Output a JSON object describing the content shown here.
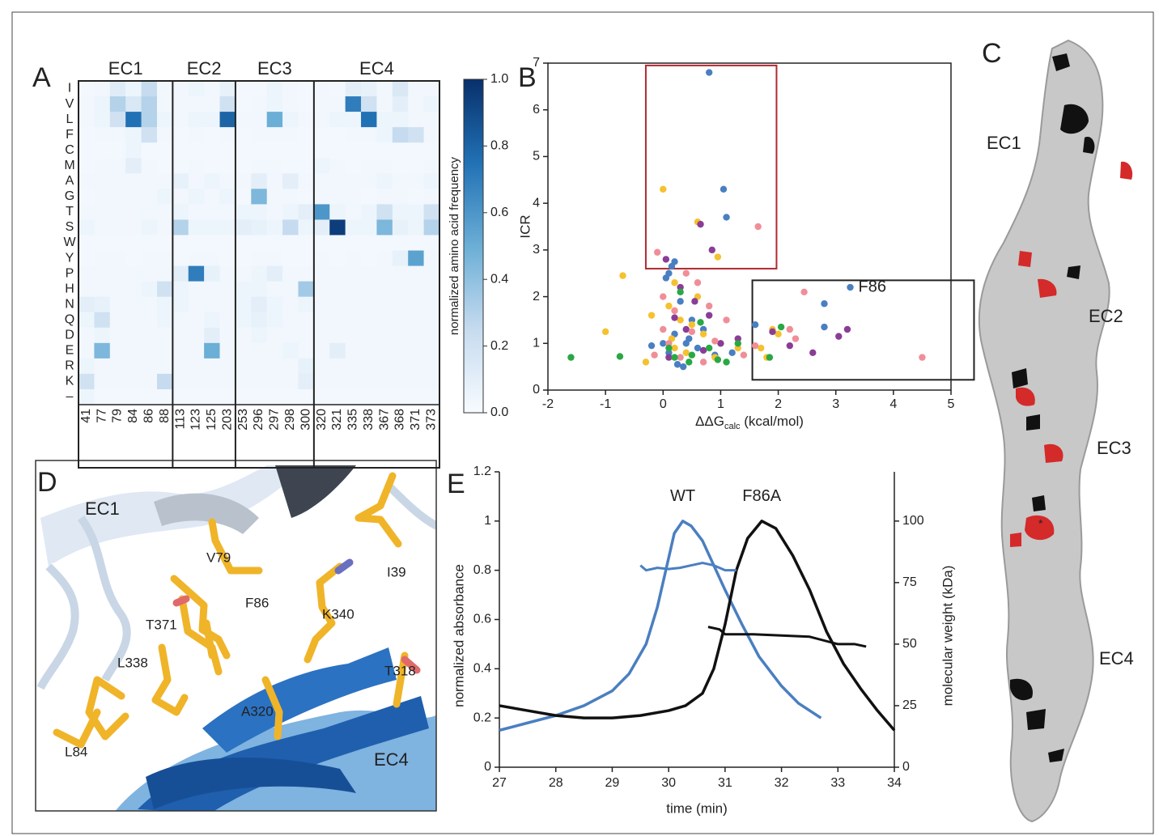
{
  "chart_data": [
    {
      "type": "heatmap",
      "panel_label": "A",
      "rows": [
        "I",
        "V",
        "L",
        "F",
        "C",
        "M",
        "A",
        "G",
        "T",
        "S",
        "W",
        "Y",
        "P",
        "H",
        "N",
        "Q",
        "D",
        "E",
        "R",
        "K",
        "–"
      ],
      "column_groups": [
        {
          "name": "EC1",
          "columns": [
            "41",
            "77",
            "79",
            "84",
            "86",
            "88"
          ]
        },
        {
          "name": "EC2",
          "columns": [
            "113",
            "123",
            "125",
            "203"
          ]
        },
        {
          "name": "EC3",
          "columns": [
            "253",
            "296",
            "297",
            "298",
            "300"
          ]
        },
        {
          "name": "EC4",
          "columns": [
            "320",
            "321",
            "335",
            "338",
            "367",
            "368",
            "371",
            "373"
          ]
        }
      ],
      "values": [
        [
          0.02,
          0.03,
          0.12,
          0.05,
          0.25,
          0.03,
          0.03,
          0.05,
          0.03,
          0.08,
          0.02,
          0.02,
          0.05,
          0.03,
          0.02,
          0.03,
          0.02,
          0.1,
          0.08,
          0.03,
          0.15,
          0.03,
          0.03
        ],
        [
          0.03,
          0.05,
          0.3,
          0.15,
          0.3,
          0.03,
          0.03,
          0.03,
          0.03,
          0.2,
          0.02,
          0.03,
          0.05,
          0.03,
          0.02,
          0.03,
          0.03,
          0.7,
          0.2,
          0.03,
          0.1,
          0.03,
          0.05
        ],
        [
          0.03,
          0.05,
          0.2,
          0.75,
          0.3,
          0.05,
          0.03,
          0.05,
          0.05,
          0.8,
          0.03,
          0.03,
          0.5,
          0.05,
          0.03,
          0.03,
          0.05,
          0.05,
          0.75,
          0.05,
          0.05,
          0.03,
          0.03
        ],
        [
          0.02,
          0.03,
          0.03,
          0.05,
          0.2,
          0.03,
          0.02,
          0.03,
          0.02,
          0.03,
          0.02,
          0.03,
          0.03,
          0.03,
          0.02,
          0.02,
          0.02,
          0.03,
          0.03,
          0.05,
          0.25,
          0.2,
          0.03
        ],
        [
          0.02,
          0.02,
          0.02,
          0.05,
          0.02,
          0.02,
          0.02,
          0.02,
          0.02,
          0.02,
          0.02,
          0.02,
          0.02,
          0.02,
          0.02,
          0.02,
          0.02,
          0.02,
          0.02,
          0.02,
          0.02,
          0.02,
          0.02
        ],
        [
          0.02,
          0.03,
          0.03,
          0.1,
          0.03,
          0.02,
          0.02,
          0.03,
          0.02,
          0.02,
          0.02,
          0.03,
          0.03,
          0.02,
          0.02,
          0.05,
          0.03,
          0.02,
          0.03,
          0.03,
          0.02,
          0.02,
          0.03
        ],
        [
          0.03,
          0.03,
          0.03,
          0.03,
          0.03,
          0.03,
          0.08,
          0.03,
          0.05,
          0.03,
          0.03,
          0.1,
          0.03,
          0.1,
          0.03,
          0.03,
          0.03,
          0.03,
          0.03,
          0.05,
          0.03,
          0.03,
          0.05
        ],
        [
          0.02,
          0.03,
          0.03,
          0.03,
          0.03,
          0.05,
          0.03,
          0.05,
          0.03,
          0.05,
          0.02,
          0.45,
          0.03,
          0.03,
          0.02,
          0.03,
          0.03,
          0.03,
          0.02,
          0.03,
          0.03,
          0.02,
          0.03
        ],
        [
          0.03,
          0.03,
          0.03,
          0.03,
          0.03,
          0.03,
          0.05,
          0.03,
          0.03,
          0.03,
          0.05,
          0.05,
          0.03,
          0.05,
          0.1,
          0.6,
          0.05,
          0.03,
          0.05,
          0.2,
          0.05,
          0.05,
          0.2
        ],
        [
          0.05,
          0.03,
          0.03,
          0.03,
          0.05,
          0.03,
          0.3,
          0.05,
          0.05,
          0.05,
          0.1,
          0.08,
          0.05,
          0.25,
          0.05,
          0.1,
          0.95,
          0.05,
          0.05,
          0.45,
          0.08,
          0.05,
          0.3
        ],
        [
          0.02,
          0.02,
          0.02,
          0.02,
          0.02,
          0.02,
          0.02,
          0.02,
          0.02,
          0.02,
          0.02,
          0.02,
          0.02,
          0.02,
          0.02,
          0.02,
          0.02,
          0.02,
          0.02,
          0.02,
          0.02,
          0.02,
          0.02
        ],
        [
          0.02,
          0.03,
          0.03,
          0.02,
          0.03,
          0.03,
          0.02,
          0.03,
          0.03,
          0.02,
          0.02,
          0.03,
          0.03,
          0.02,
          0.02,
          0.03,
          0.02,
          0.03,
          0.02,
          0.03,
          0.08,
          0.55,
          0.03
        ],
        [
          0.03,
          0.03,
          0.03,
          0.03,
          0.03,
          0.03,
          0.1,
          0.7,
          0.08,
          0.03,
          0.03,
          0.05,
          0.1,
          0.03,
          0.03,
          0.03,
          0.03,
          0.03,
          0.03,
          0.03,
          0.03,
          0.03,
          0.03
        ],
        [
          0.03,
          0.03,
          0.03,
          0.03,
          0.05,
          0.2,
          0.05,
          0.03,
          0.03,
          0.03,
          0.05,
          0.05,
          0.03,
          0.03,
          0.35,
          0.03,
          0.03,
          0.03,
          0.03,
          0.03,
          0.03,
          0.03,
          0.03
        ],
        [
          0.1,
          0.08,
          0.03,
          0.03,
          0.03,
          0.05,
          0.05,
          0.03,
          0.03,
          0.03,
          0.05,
          0.1,
          0.05,
          0.03,
          0.05,
          0.03,
          0.03,
          0.03,
          0.03,
          0.03,
          0.03,
          0.03,
          0.03
        ],
        [
          0.05,
          0.2,
          0.03,
          0.03,
          0.03,
          0.05,
          0.03,
          0.03,
          0.05,
          0.03,
          0.05,
          0.08,
          0.05,
          0.03,
          0.03,
          0.03,
          0.03,
          0.03,
          0.03,
          0.03,
          0.03,
          0.03,
          0.03
        ],
        [
          0.03,
          0.05,
          0.03,
          0.03,
          0.03,
          0.03,
          0.03,
          0.03,
          0.1,
          0.03,
          0.03,
          0.05,
          0.03,
          0.03,
          0.03,
          0.03,
          0.03,
          0.03,
          0.03,
          0.03,
          0.03,
          0.03,
          0.03
        ],
        [
          0.03,
          0.45,
          0.03,
          0.03,
          0.03,
          0.03,
          0.03,
          0.03,
          0.5,
          0.03,
          0.03,
          0.03,
          0.03,
          0.05,
          0.03,
          0.03,
          0.1,
          0.03,
          0.03,
          0.03,
          0.03,
          0.03,
          0.03
        ],
        [
          0.05,
          0.03,
          0.03,
          0.03,
          0.03,
          0.03,
          0.03,
          0.03,
          0.03,
          0.03,
          0.03,
          0.03,
          0.03,
          0.03,
          0.08,
          0.03,
          0.03,
          0.03,
          0.03,
          0.03,
          0.03,
          0.03,
          0.03
        ],
        [
          0.2,
          0.03,
          0.03,
          0.03,
          0.03,
          0.25,
          0.03,
          0.03,
          0.03,
          0.03,
          0.03,
          0.03,
          0.03,
          0.03,
          0.1,
          0.03,
          0.03,
          0.03,
          0.03,
          0.03,
          0.03,
          0.03,
          0.03
        ],
        [
          0.05,
          0.02,
          0.02,
          0.02,
          0.02,
          0.02,
          0.02,
          0.02,
          0.02,
          0.02,
          0.02,
          0.02,
          0.02,
          0.02,
          0.02,
          0.02,
          0.02,
          0.02,
          0.02,
          0.02,
          0.02,
          0.02,
          0.02
        ]
      ],
      "colormap": [
        "#f7fbff",
        "#c6dbef",
        "#6baed6",
        "#2171b5",
        "#08306b"
      ],
      "zlim": [
        0,
        1
      ],
      "zticks": [
        {
          "value": 0,
          "label": "0.0"
        },
        0.2,
        0.4,
        0.6,
        0.8,
        {
          "value": 1,
          "label": "1.0"
        }
      ],
      "colorbar_label": "normalized amino acid frequency"
    },
    {
      "type": "scatter",
      "panel_label": "B",
      "xlabel": {
        "main": "ΔΔG",
        "sub": "calc",
        "unit": "(kcal/mol)"
      },
      "ylabel": "ICR",
      "xlim": [
        -2,
        5
      ],
      "xticks": [
        -2,
        -1,
        0,
        1,
        2,
        3,
        4,
        5
      ],
      "ylim": [
        0,
        7
      ],
      "yticks": [
        0,
        1,
        2,
        3,
        4,
        5,
        6,
        7
      ],
      "series": [
        {
          "color": "#4a7fc1",
          "x": [
            0.8,
            1.05,
            1.1,
            0.2,
            0.15,
            3.25,
            2.8,
            2.8,
            0.05,
            0.1,
            0.3,
            0.5,
            0.2,
            0.4,
            0.6,
            0.1,
            0.35,
            0.25,
            1.6,
            0.7,
            0.0,
            -0.2,
            0.9,
            1.2,
            0.45
          ],
          "y": [
            6.8,
            4.3,
            3.7,
            2.75,
            2.65,
            2.2,
            1.85,
            1.35,
            2.4,
            2.5,
            1.9,
            1.5,
            1.2,
            1.0,
            0.9,
            0.8,
            0.5,
            0.55,
            1.4,
            1.3,
            1.0,
            0.95,
            0.75,
            0.8,
            1.1
          ]
        },
        {
          "color": "#f5c12e",
          "x": [
            0.0,
            0.6,
            0.95,
            -0.7,
            0.2,
            -1.0,
            -0.2,
            0.1,
            0.3,
            0.5,
            0.7,
            0.2,
            0.4,
            0.9,
            1.3,
            1.9,
            2.0,
            1.7,
            1.8,
            -0.3,
            0.6,
            1.0,
            0.15
          ],
          "y": [
            4.3,
            3.6,
            2.85,
            2.45,
            2.3,
            1.25,
            1.6,
            1.8,
            1.5,
            1.4,
            1.2,
            0.9,
            0.8,
            0.7,
            0.9,
            1.3,
            1.2,
            0.9,
            0.7,
            0.6,
            2.0,
            1.0,
            1.1
          ]
        },
        {
          "color": "#8a3d96",
          "x": [
            0.65,
            0.85,
            0.05,
            0.3,
            0.55,
            0.8,
            1.0,
            1.9,
            2.2,
            2.6,
            3.05,
            3.2,
            0.4,
            0.1,
            0.7,
            1.3,
            0.2
          ],
          "y": [
            3.55,
            3.0,
            2.8,
            2.2,
            1.9,
            1.6,
            1.0,
            1.25,
            0.95,
            0.8,
            1.15,
            1.3,
            1.3,
            0.7,
            0.85,
            1.1,
            1.55
          ]
        },
        {
          "color": "#f08e97",
          "x": [
            1.65,
            -0.1,
            2.45,
            4.5,
            0.0,
            0.4,
            0.6,
            0.2,
            0.8,
            0.5,
            0.1,
            0.3,
            -0.15,
            0.9,
            2.2,
            2.3,
            1.6,
            1.1,
            0.0,
            0.7,
            1.4
          ],
          "y": [
            3.5,
            2.95,
            2.1,
            0.7,
            2.0,
            2.5,
            2.3,
            1.7,
            1.8,
            1.25,
            1.0,
            0.7,
            0.75,
            1.05,
            1.3,
            1.1,
            0.95,
            1.5,
            1.3,
            0.6,
            0.75
          ]
        },
        {
          "color": "#29a845",
          "x": [
            -1.6,
            -0.75,
            0.2,
            0.5,
            0.95,
            0.8,
            1.1,
            0.3,
            0.65,
            1.3,
            1.85,
            2.05,
            0.1,
            0.45
          ],
          "y": [
            0.7,
            0.72,
            0.7,
            0.75,
            0.65,
            0.9,
            0.6,
            2.1,
            1.45,
            1.0,
            0.7,
            1.35,
            0.9,
            0.6
          ]
        }
      ],
      "highlight_boxes": [
        {
          "xlim": [
            -0.3,
            1.97
          ],
          "ylim": [
            2.6,
            6.95
          ],
          "color": "#b02a30"
        },
        {
          "xlim": [
            1.55,
            5.4
          ],
          "ylim": [
            0.22,
            2.35
          ],
          "color": "#222222"
        }
      ],
      "annotations": [
        {
          "text": "F86",
          "series": 0,
          "index": 5
        }
      ]
    },
    {
      "type": "line",
      "panel_label": "E",
      "xlabel": "time (min)",
      "ylabel": "normalized absorbance",
      "y2label": "molecular weight (kDa)",
      "xlim": [
        27,
        34
      ],
      "xticks": [
        27,
        28,
        29,
        30,
        31,
        32,
        33,
        34
      ],
      "ylim": [
        0,
        1.2
      ],
      "yticks": [
        0,
        0.2,
        0.4,
        0.6,
        0.8,
        1,
        1.2
      ],
      "y2lim": [
        0,
        120
      ],
      "y2ticks": [
        0,
        25,
        50,
        75,
        100
      ],
      "series": [
        {
          "name": "WT",
          "color": "#4a7fc1",
          "x": [
            27,
            27.5,
            28,
            28.5,
            29,
            29.3,
            29.6,
            29.8,
            30,
            30.1,
            30.25,
            30.4,
            30.6,
            30.8,
            31,
            31.3,
            31.6,
            32,
            32.3,
            32.7
          ],
          "values": [
            0.15,
            0.18,
            0.21,
            0.25,
            0.31,
            0.38,
            0.5,
            0.65,
            0.85,
            0.95,
            1.0,
            0.98,
            0.92,
            0.82,
            0.72,
            0.58,
            0.45,
            0.33,
            0.26,
            0.2
          ]
        },
        {
          "name": "F86A",
          "color": "#111111",
          "x": [
            27,
            27.5,
            28,
            28.5,
            29,
            29.5,
            30,
            30.3,
            30.6,
            30.8,
            31,
            31.2,
            31.4,
            31.65,
            31.9,
            32.2,
            32.5,
            32.8,
            33.1,
            33.4,
            33.7,
            34
          ],
          "values": [
            0.25,
            0.23,
            0.21,
            0.2,
            0.2,
            0.21,
            0.23,
            0.25,
            0.3,
            0.4,
            0.58,
            0.8,
            0.93,
            1.0,
            0.97,
            0.86,
            0.72,
            0.55,
            0.42,
            0.32,
            0.23,
            0.15
          ]
        },
        {
          "color": "#4a7fc1",
          "axis": "y2",
          "x": [
            29.5,
            29.6,
            29.8,
            30,
            30.2,
            30.4,
            30.6,
            30.8,
            31,
            31.2
          ],
          "values": [
            82,
            80,
            81,
            80.5,
            81,
            82,
            83,
            82,
            80,
            80
          ]
        },
        {
          "color": "#111111",
          "axis": "y2",
          "x": [
            30.7,
            30.9,
            31,
            31.5,
            32,
            32.5,
            33,
            33.3,
            33.5
          ],
          "values": [
            57,
            56,
            54,
            54,
            53.5,
            53,
            50,
            50,
            49
          ]
        }
      ]
    }
  ],
  "panel_c": {
    "letter": "C",
    "labels": [
      "EC1",
      "EC2",
      "EC3",
      "EC4"
    ]
  },
  "panel_d": {
    "letter": "D",
    "labels": [
      "EC1",
      "V79",
      "I39",
      "F86",
      "K340",
      "T371",
      "L338",
      "T318",
      "A320",
      "L84",
      "EC4"
    ]
  }
}
